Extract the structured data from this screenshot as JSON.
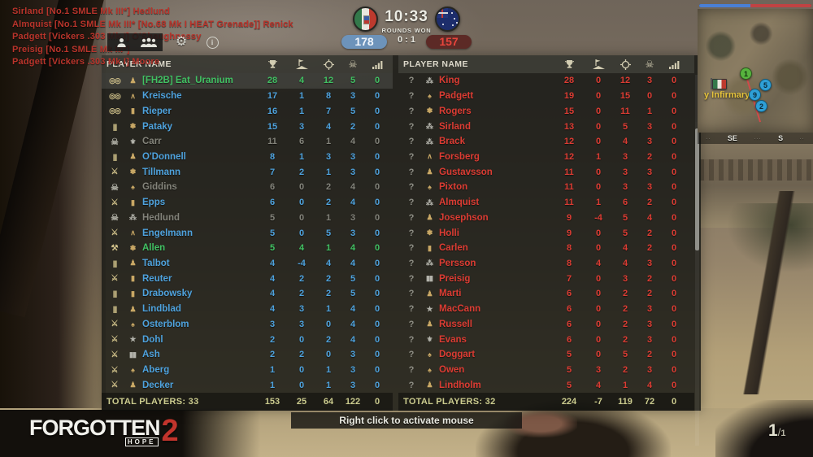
{
  "colors": {
    "team1_accent": "#4ea2dd",
    "team2_accent": "#dc3c33",
    "self_accent": "#41c163",
    "dead_text": "#83837a",
    "totals_text": "#cbcb8e",
    "ticket_blue": "#4a7fd4",
    "ticket_red": "#c04343"
  },
  "hud": {
    "kill_feed": [
      "Sirland  [No.1 SMLE Mk III*] Hedlund",
      "Almquist  [No.1 SMLE Mk III* [No.68 Mk I HEAT Grenade]] Renick",
      "Padgett  [Vickers .303 Mk I] O'Shaughnessy",
      "Preisig  [No.1 SMLE Mk III*]",
      "Padgett  [Vickers .303 Mk I] Moore"
    ],
    "toolbar": {
      "icons": [
        "player-list",
        "squad-list",
        "settings",
        "info"
      ]
    },
    "match": {
      "time": "10:33",
      "rounds_won_label": "ROUNDS WON",
      "rounds_score": "0 : 1",
      "team1_flag": "italy",
      "team2_flag": "australia",
      "team1_score": "178",
      "team2_score": "157"
    },
    "hint": "Right click to activate mouse",
    "logo": {
      "line1": "FORGOTTEN",
      "line2": "HOPE",
      "number": "2"
    },
    "ammo": {
      "current": "1",
      "separator": "/",
      "reserve": "1"
    }
  },
  "minimap": {
    "poi_label": "y Infirmary",
    "compass": {
      "primary": "SE",
      "secondary": "S"
    },
    "markers": [
      {
        "type": "flag-italy",
        "label": ""
      },
      {
        "type": "objective-green",
        "label": "1"
      },
      {
        "type": "squad-blue",
        "label": "5"
      },
      {
        "type": "squad-blue",
        "label": "9"
      },
      {
        "type": "squad-blue",
        "label": "2"
      }
    ]
  },
  "scoreboard": {
    "header_label": "PLAYER NAME",
    "columns": [
      "score",
      "flag-captures",
      "kills",
      "deaths",
      "ping"
    ],
    "left": {
      "total_label": "TOTAL PLAYERS: 33",
      "totals": [
        153,
        25,
        64,
        122,
        0
      ],
      "rows": [
        {
          "name": "[FH2B] Eat_Uranium",
          "kit": "binoculars",
          "rank": "helmet",
          "state": "self",
          "vals": [
            28,
            4,
            12,
            5,
            0
          ]
        },
        {
          "name": "Kreische",
          "kit": "binoculars",
          "rank": "chevron",
          "state": "ally",
          "vals": [
            17,
            1,
            8,
            3,
            0
          ]
        },
        {
          "name": "Rieper",
          "kit": "binoculars",
          "rank": "bar",
          "state": "ally",
          "vals": [
            16,
            1,
            7,
            5,
            0
          ]
        },
        {
          "name": "Pataky",
          "kit": "ammo",
          "rank": "flower",
          "state": "ally",
          "vals": [
            15,
            3,
            4,
            2,
            0
          ]
        },
        {
          "name": "Carr",
          "kit": "skull",
          "rank": "eagle",
          "state": "dead",
          "vals": [
            11,
            6,
            1,
            4,
            0
          ]
        },
        {
          "name": "O'Donnell",
          "kit": "ammo",
          "rank": "helmet",
          "state": "ally",
          "vals": [
            8,
            1,
            3,
            3,
            0
          ]
        },
        {
          "name": "Tillmann",
          "kit": "sword",
          "rank": "flower",
          "state": "ally",
          "vals": [
            7,
            2,
            1,
            3,
            0
          ]
        },
        {
          "name": "Giddins",
          "kit": "skull",
          "rank": "spade",
          "state": "dead",
          "vals": [
            6,
            0,
            2,
            4,
            0
          ]
        },
        {
          "name": "Epps",
          "kit": "sword",
          "rank": "bar",
          "state": "ally",
          "vals": [
            6,
            0,
            2,
            4,
            0
          ]
        },
        {
          "name": "Hedlund",
          "kit": "skull",
          "rank": "stars3",
          "state": "dead",
          "vals": [
            5,
            0,
            1,
            3,
            0
          ]
        },
        {
          "name": "Engelmann",
          "kit": "sword",
          "rank": "chevron",
          "state": "ally",
          "vals": [
            5,
            0,
            5,
            3,
            0
          ]
        },
        {
          "name": "Allen",
          "kit": "wrench",
          "rank": "flower",
          "state": "squad",
          "vals": [
            5,
            4,
            1,
            4,
            0
          ]
        },
        {
          "name": "Talbot",
          "kit": "ammo",
          "rank": "helmet",
          "state": "ally",
          "vals": [
            4,
            -4,
            4,
            4,
            0
          ]
        },
        {
          "name": "Reuter",
          "kit": "sword",
          "rank": "bar",
          "state": "ally",
          "vals": [
            4,
            2,
            2,
            5,
            0
          ]
        },
        {
          "name": "Drabowsky",
          "kit": "ammo",
          "rank": "bar",
          "state": "ally",
          "vals": [
            4,
            2,
            2,
            5,
            0
          ]
        },
        {
          "name": "Lindblad",
          "kit": "ammo",
          "rank": "helmet",
          "state": "ally",
          "vals": [
            4,
            3,
            1,
            4,
            0
          ]
        },
        {
          "name": "Osterblom",
          "kit": "sword",
          "rank": "spade",
          "state": "ally",
          "vals": [
            3,
            3,
            0,
            4,
            0
          ]
        },
        {
          "name": "Dohl",
          "kit": "sword",
          "rank": "star",
          "state": "ally",
          "vals": [
            2,
            0,
            2,
            4,
            0
          ]
        },
        {
          "name": "Ash",
          "kit": "sword",
          "rank": "bars2",
          "state": "ally",
          "vals": [
            2,
            2,
            0,
            3,
            0
          ]
        },
        {
          "name": "Aberg",
          "kit": "sword",
          "rank": "spade",
          "state": "ally",
          "vals": [
            1,
            0,
            1,
            3,
            0
          ]
        },
        {
          "name": "Decker",
          "kit": "sword",
          "rank": "helmet",
          "state": "ally",
          "vals": [
            1,
            0,
            1,
            3,
            0
          ]
        }
      ]
    },
    "right": {
      "total_label": "TOTAL PLAYERS: 32",
      "totals": [
        224,
        -7,
        119,
        72,
        0
      ],
      "rows": [
        {
          "name": "King",
          "kit": "unknown",
          "rank": "stars3",
          "state": "enemy",
          "vals": [
            28,
            0,
            12,
            3,
            0
          ]
        },
        {
          "name": "Padgett",
          "kit": "unknown",
          "rank": "spade",
          "state": "enemy",
          "vals": [
            19,
            0,
            15,
            0,
            0
          ]
        },
        {
          "name": "Rogers",
          "kit": "unknown",
          "rank": "flower",
          "state": "enemy",
          "vals": [
            15,
            0,
            11,
            1,
            0
          ]
        },
        {
          "name": "Sirland",
          "kit": "unknown",
          "rank": "stars3",
          "state": "enemy",
          "vals": [
            13,
            0,
            5,
            3,
            0
          ]
        },
        {
          "name": "Brack",
          "kit": "unknown",
          "rank": "stars3",
          "state": "enemy",
          "vals": [
            12,
            0,
            4,
            3,
            0
          ]
        },
        {
          "name": "Forsberg",
          "kit": "unknown",
          "rank": "chevron",
          "state": "enemy",
          "vals": [
            12,
            1,
            3,
            2,
            0
          ]
        },
        {
          "name": "Gustavsson",
          "kit": "unknown",
          "rank": "helmet",
          "state": "enemy",
          "vals": [
            11,
            0,
            3,
            3,
            0
          ]
        },
        {
          "name": "Pixton",
          "kit": "unknown",
          "rank": "spade",
          "state": "enemy",
          "vals": [
            11,
            0,
            3,
            3,
            0
          ]
        },
        {
          "name": "Almquist",
          "kit": "unknown",
          "rank": "stars3",
          "state": "enemy",
          "vals": [
            11,
            1,
            6,
            2,
            0
          ]
        },
        {
          "name": "Josephson",
          "kit": "unknown",
          "rank": "helmet",
          "state": "enemy",
          "vals": [
            9,
            -4,
            5,
            4,
            0
          ]
        },
        {
          "name": "Holli",
          "kit": "unknown",
          "rank": "flower",
          "state": "enemy",
          "vals": [
            9,
            0,
            5,
            2,
            0
          ]
        },
        {
          "name": "Carlen",
          "kit": "unknown",
          "rank": "bar",
          "state": "enemy",
          "vals": [
            8,
            0,
            4,
            2,
            0
          ]
        },
        {
          "name": "Persson",
          "kit": "unknown",
          "rank": "stars3",
          "state": "enemy",
          "vals": [
            8,
            4,
            4,
            3,
            0
          ]
        },
        {
          "name": "Preisig",
          "kit": "unknown",
          "rank": "bars2",
          "state": "enemy",
          "vals": [
            7,
            0,
            3,
            2,
            0
          ]
        },
        {
          "name": "Marti",
          "kit": "unknown",
          "rank": "helmet",
          "state": "enemy",
          "vals": [
            6,
            0,
            2,
            2,
            0
          ]
        },
        {
          "name": "MacCann",
          "kit": "unknown",
          "rank": "star",
          "state": "enemy",
          "vals": [
            6,
            0,
            2,
            3,
            0
          ]
        },
        {
          "name": "Russell",
          "kit": "unknown",
          "rank": "helmet",
          "state": "enemy",
          "vals": [
            6,
            0,
            2,
            3,
            0
          ]
        },
        {
          "name": "Evans",
          "kit": "unknown",
          "rank": "eagle",
          "state": "enemy",
          "vals": [
            6,
            0,
            2,
            3,
            0
          ]
        },
        {
          "name": "Doggart",
          "kit": "unknown",
          "rank": "spade",
          "state": "enemy",
          "vals": [
            5,
            0,
            5,
            2,
            0
          ]
        },
        {
          "name": "Owen",
          "kit": "unknown",
          "rank": "spade",
          "state": "enemy",
          "vals": [
            5,
            3,
            2,
            3,
            0
          ]
        },
        {
          "name": "Lindholm",
          "kit": "unknown",
          "rank": "helmet",
          "state": "enemy",
          "vals": [
            5,
            4,
            1,
            4,
            0
          ]
        }
      ]
    }
  }
}
